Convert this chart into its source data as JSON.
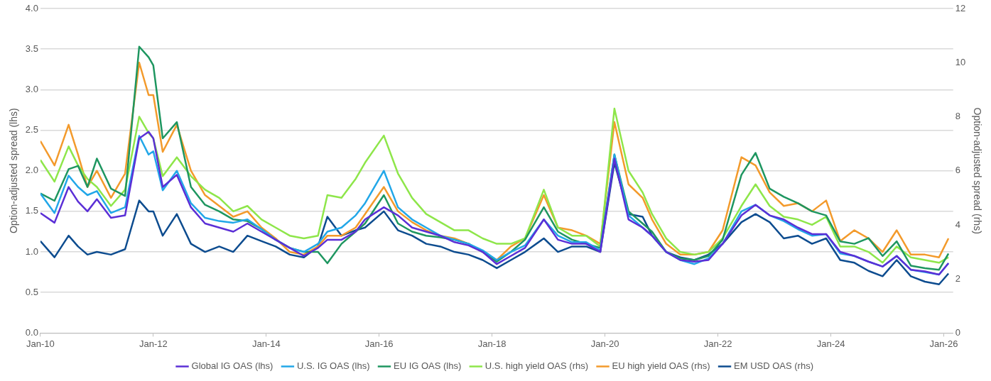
{
  "chart_data": {
    "type": "line",
    "ylabel": "Option-adjusted spread (lhs)",
    "y2label": "Option-adjusted spread (rhs)",
    "x": [
      "2010-01",
      "2010-04",
      "2010-07",
      "2010-09",
      "2010-11",
      "2011-01",
      "2011-04",
      "2011-07",
      "2011-10",
      "2011-12",
      "2012-01",
      "2012-03",
      "2012-06",
      "2012-09",
      "2012-12",
      "2013-03",
      "2013-06",
      "2013-09",
      "2013-12",
      "2014-03",
      "2014-06",
      "2014-09",
      "2014-12",
      "2015-02",
      "2015-05",
      "2015-08",
      "2015-10",
      "2016-02",
      "2016-05",
      "2016-08",
      "2016-11",
      "2017-02",
      "2017-05",
      "2017-08",
      "2017-11",
      "2018-02",
      "2018-05",
      "2018-08",
      "2018-12",
      "2019-03",
      "2019-06",
      "2019-09",
      "2019-12",
      "2020-03",
      "2020-06",
      "2020-09",
      "2020-11",
      "2021-02",
      "2021-05",
      "2021-08",
      "2021-11",
      "2022-02",
      "2022-06",
      "2022-09",
      "2022-12",
      "2023-03",
      "2023-06",
      "2023-09",
      "2023-12",
      "2024-03",
      "2024-06",
      "2024-09",
      "2024-12",
      "2025-03",
      "2025-06",
      "2025-09",
      "2025-12",
      "2026-02"
    ],
    "series": [
      {
        "name": "Global IG OAS (lhs)",
        "color": "#5b2fd6",
        "values": [
          1.48,
          1.36,
          1.8,
          1.62,
          1.5,
          1.65,
          1.42,
          1.45,
          2.4,
          2.48,
          2.4,
          1.8,
          1.95,
          1.55,
          1.35,
          1.3,
          1.25,
          1.35,
          1.25,
          1.15,
          1.05,
          0.95,
          1.05,
          1.15,
          1.15,
          1.25,
          1.4,
          1.55,
          1.45,
          1.3,
          1.25,
          1.2,
          1.12,
          1.08,
          1.0,
          0.85,
          0.95,
          1.05,
          1.4,
          1.15,
          1.1,
          1.1,
          1.0,
          2.15,
          1.4,
          1.3,
          1.2,
          1.0,
          0.9,
          0.88,
          0.9,
          1.1,
          1.45,
          1.58,
          1.45,
          1.4,
          1.3,
          1.22,
          1.22,
          1.0,
          0.95,
          0.88,
          0.82,
          0.95,
          0.78,
          0.76,
          0.72,
          0.86
        ]
      },
      {
        "name": "U.S. IG OAS (lhs)",
        "color": "#22a7e8",
        "values": [
          1.72,
          1.48,
          1.94,
          1.8,
          1.7,
          1.75,
          1.48,
          1.55,
          2.43,
          2.2,
          2.24,
          1.76,
          2.0,
          1.6,
          1.42,
          1.38,
          1.36,
          1.4,
          1.28,
          1.15,
          1.05,
          1.0,
          1.1,
          1.25,
          1.3,
          1.45,
          1.6,
          2.0,
          1.55,
          1.4,
          1.3,
          1.2,
          1.15,
          1.1,
          1.02,
          0.9,
          1.0,
          1.08,
          1.4,
          1.2,
          1.12,
          1.12,
          1.02,
          2.2,
          1.45,
          1.3,
          1.2,
          1.0,
          0.9,
          0.85,
          0.92,
          1.1,
          1.5,
          1.58,
          1.45,
          1.38,
          1.28,
          1.2,
          1.22,
          0.98,
          0.95,
          0.88,
          0.82,
          0.95,
          0.78,
          0.75,
          0.72,
          0.86
        ]
      },
      {
        "name": "EU IG OAS (lhs)",
        "color": "#1e9660",
        "values": [
          1.72,
          1.63,
          2.02,
          2.06,
          1.8,
          2.15,
          1.78,
          1.69,
          3.53,
          3.4,
          3.3,
          2.4,
          2.6,
          1.8,
          1.58,
          1.5,
          1.4,
          1.38,
          1.28,
          1.15,
          1.05,
          1.0,
          1.0,
          0.86,
          1.1,
          1.25,
          1.35,
          1.7,
          1.35,
          1.25,
          1.2,
          1.18,
          1.15,
          1.1,
          1.0,
          0.88,
          1.0,
          1.15,
          1.55,
          1.25,
          1.15,
          1.1,
          1.05,
          2.2,
          1.5,
          1.35,
          1.25,
          1.0,
          0.92,
          0.9,
          0.95,
          1.15,
          1.95,
          2.22,
          1.78,
          1.68,
          1.6,
          1.5,
          1.45,
          1.13,
          1.1,
          1.17,
          0.95,
          1.13,
          0.83,
          0.8,
          0.78,
          0.98
        ]
      },
      {
        "name": "U.S. high yield OAS (rhs)",
        "color": "#8ee64a",
        "axis": "y2",
        "values": [
          6.4,
          5.6,
          6.9,
          6.2,
          5.7,
          5.4,
          4.7,
          5.3,
          8.0,
          7.4,
          7.2,
          5.8,
          6.5,
          5.8,
          5.3,
          5.0,
          4.5,
          4.7,
          4.2,
          3.9,
          3.6,
          3.5,
          3.6,
          5.1,
          5.0,
          5.7,
          6.3,
          7.3,
          5.9,
          5.0,
          4.4,
          4.1,
          3.8,
          3.8,
          3.5,
          3.3,
          3.3,
          3.5,
          5.3,
          3.9,
          3.6,
          3.6,
          3.2,
          8.3,
          6.0,
          5.2,
          4.4,
          3.5,
          3.0,
          2.9,
          3.0,
          3.5,
          4.7,
          5.5,
          4.7,
          4.3,
          4.2,
          4.0,
          4.3,
          3.2,
          3.2,
          3.0,
          2.6,
          3.2,
          2.8,
          2.7,
          2.6,
          2.8
        ]
      },
      {
        "name": "EU high yield OAS (rhs)",
        "color": "#f39a2b",
        "axis": "y2",
        "values": [
          7.1,
          6.2,
          7.7,
          6.6,
          5.4,
          6.0,
          5.0,
          5.9,
          10.0,
          8.8,
          8.8,
          6.7,
          7.7,
          6.0,
          5.1,
          4.7,
          4.3,
          4.5,
          3.9,
          3.5,
          3.0,
          2.9,
          3.2,
          3.6,
          3.6,
          3.9,
          4.4,
          5.4,
          4.5,
          4.1,
          3.8,
          3.6,
          3.5,
          3.3,
          3.0,
          2.7,
          3.2,
          3.5,
          5.1,
          3.9,
          3.8,
          3.6,
          3.3,
          7.8,
          5.5,
          5.0,
          4.2,
          3.3,
          2.9,
          2.9,
          3.0,
          3.8,
          6.5,
          6.2,
          5.2,
          4.7,
          4.8,
          4.5,
          4.9,
          3.4,
          3.8,
          3.5,
          3.0,
          3.8,
          2.9,
          2.9,
          2.8,
          3.5
        ]
      },
      {
        "name": "EM USD OAS (rhs)",
        "color": "#0d4c8f",
        "axis": "y2",
        "values": [
          3.4,
          2.8,
          3.6,
          3.2,
          2.9,
          3.0,
          2.9,
          3.1,
          4.9,
          4.5,
          4.5,
          3.6,
          4.4,
          3.3,
          3.0,
          3.2,
          3.0,
          3.6,
          3.4,
          3.2,
          2.9,
          2.8,
          3.2,
          4.3,
          3.6,
          3.8,
          3.9,
          4.5,
          3.8,
          3.6,
          3.3,
          3.2,
          3.0,
          2.9,
          2.7,
          2.4,
          2.7,
          3.0,
          3.5,
          3.0,
          3.2,
          3.2,
          3.0,
          6.3,
          4.4,
          4.3,
          3.6,
          3.0,
          2.8,
          2.7,
          2.9,
          3.3,
          4.1,
          4.4,
          4.1,
          3.5,
          3.6,
          3.3,
          3.5,
          2.7,
          2.6,
          2.3,
          2.1,
          2.7,
          2.1,
          1.9,
          1.8,
          2.2
        ]
      }
    ],
    "xlim": [
      "2010-01",
      "2026-03"
    ],
    "xticks": [
      {
        "value": "2010-01",
        "label": "Jan-10"
      },
      {
        "value": "2012-01",
        "label": "Jan-12"
      },
      {
        "value": "2014-01",
        "label": "Jan-14"
      },
      {
        "value": "2016-01",
        "label": "Jan-16"
      },
      {
        "value": "2018-01",
        "label": "Jan-18"
      },
      {
        "value": "2020-01",
        "label": "Jan-20"
      },
      {
        "value": "2022-01",
        "label": "Jan-22"
      },
      {
        "value": "2024-01",
        "label": "Jan-24"
      },
      {
        "value": "2026-01",
        "label": "Jan-26"
      }
    ],
    "ylim": [
      0,
      4
    ],
    "yticks": [
      {
        "value": 0,
        "label": "0.0"
      },
      {
        "value": 0.5,
        "label": "0.5"
      },
      {
        "value": 1,
        "label": "1.0"
      },
      {
        "value": 1.5,
        "label": "1.5"
      },
      {
        "value": 2,
        "label": "2.0"
      },
      {
        "value": 2.5,
        "label": "2.5"
      },
      {
        "value": 3,
        "label": "3.0"
      },
      {
        "value": 3.5,
        "label": "3.5"
      },
      {
        "value": 4,
        "label": "4.0"
      }
    ],
    "y2lim": [
      0,
      12
    ],
    "y2ticks": [
      0,
      2,
      4,
      6,
      8,
      10,
      12
    ],
    "grid": "y",
    "legend": "bottom"
  }
}
